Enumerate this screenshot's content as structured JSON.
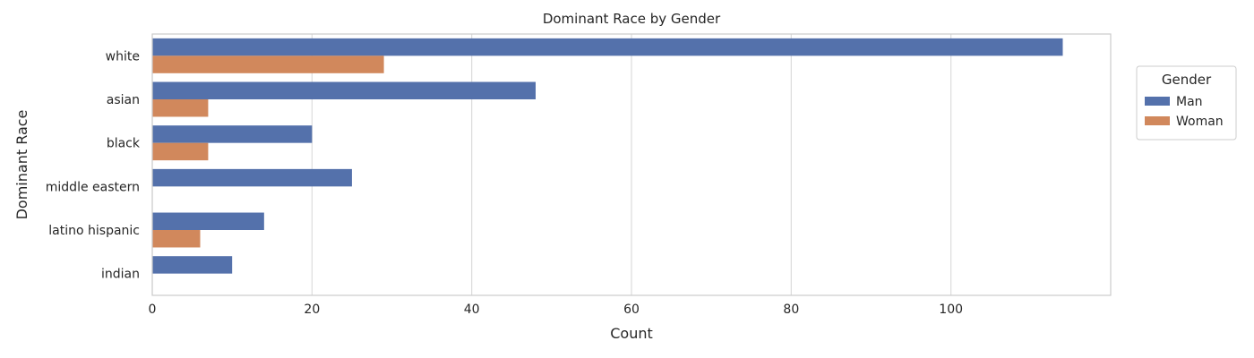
{
  "chart_data": {
    "type": "bar",
    "orientation": "horizontal",
    "title": "Dominant Race by Gender",
    "xlabel": "Count",
    "ylabel": "Dominant Race",
    "categories": [
      "white",
      "asian",
      "black",
      "middle eastern",
      "latino hispanic",
      "indian"
    ],
    "series": [
      {
        "name": "Man",
        "color": "#5471ab",
        "values": [
          114,
          48,
          20,
          25,
          14,
          10
        ]
      },
      {
        "name": "Woman",
        "color": "#d1885c",
        "values": [
          29,
          7,
          7,
          0,
          6,
          0
        ]
      }
    ],
    "xlim": [
      0,
      120
    ],
    "xticks": [
      0,
      20,
      40,
      60,
      80,
      100
    ],
    "grid": true,
    "legend": {
      "title": "Gender",
      "placement": "outside-top-right"
    }
  }
}
